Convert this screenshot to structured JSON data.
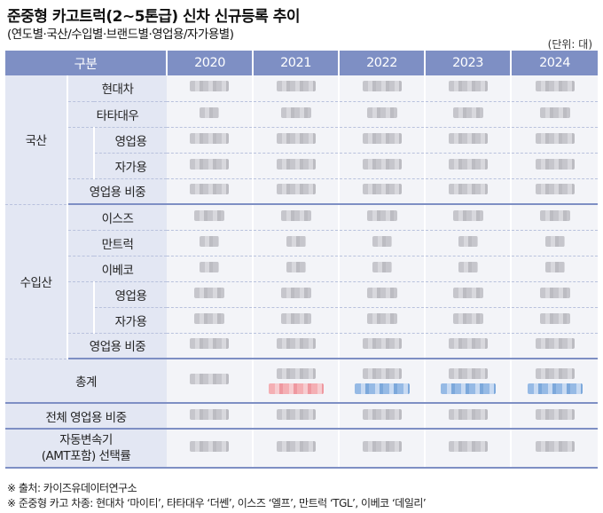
{
  "title": "준중형 카고트럭(2~5톤급) 신차 신규등록 추이",
  "subtitle": "(연도별·국산/수입별·브랜드별·영업용/자가용별)",
  "unit": "(단위: 대)",
  "header": {
    "category": "구분",
    "years": [
      "2020",
      "2021",
      "2022",
      "2023",
      "2024"
    ]
  },
  "groups": {
    "domestic": {
      "label": "국산",
      "brands": [
        "현대차",
        "타타대우"
      ],
      "sub": [
        "영업용",
        "자가용"
      ],
      "ratio": "영업용 비중"
    },
    "imported": {
      "label": "수입산",
      "brands": [
        "이스즈",
        "만트럭",
        "이베코"
      ],
      "sub": [
        "영업용",
        "자가용"
      ],
      "ratio": "영업용 비중"
    }
  },
  "total": "총계",
  "overall_ratio": "전체 영업용 비중",
  "amt_line1": "자동변속기",
  "amt_line2": "(AMT포함) 선택률",
  "notes": [
    "※ 출처: 카이즈유데이터연구소",
    "※ 준중형 카고 차종: 현대차 ‘마이티’, 타타대우 ‘더쎈’, 이스즈 ‘엘프’, 만트럭 ‘TGL’, 이베코 ‘데일리’"
  ],
  "colors": {
    "header": "#7e8fc4",
    "side": "#e3e7f3",
    "cell": "#f3f4f8"
  }
}
